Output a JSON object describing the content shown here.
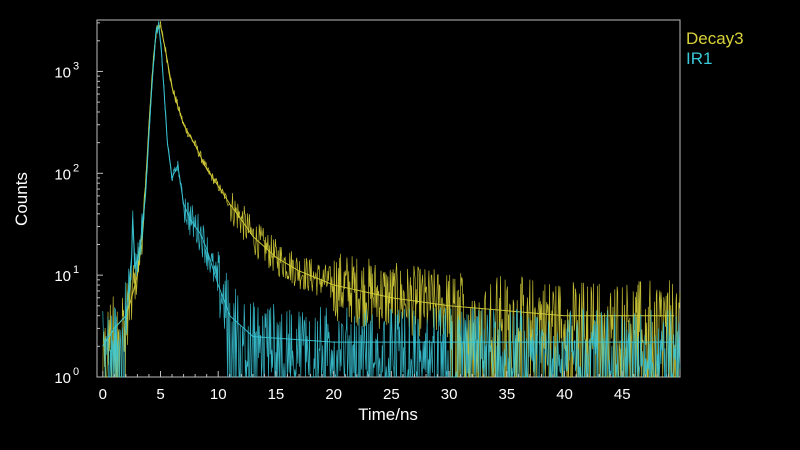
{
  "chart_data": {
    "type": "line",
    "title": "",
    "xlabel": "Time/ns",
    "ylabel": "Counts",
    "xlim": [
      -0.5,
      50
    ],
    "ylim": [
      1,
      3200
    ],
    "yscale": "log",
    "grid": false,
    "background": "#000000",
    "legend_placement": "right-top",
    "x_ticks": [
      "0",
      "5",
      "10",
      "15",
      "20",
      "25",
      "30",
      "35",
      "40",
      "45"
    ],
    "y_ticks": [
      {
        "value": 1,
        "mantissa": "10",
        "exp": "0"
      },
      {
        "value": 10,
        "mantissa": "10",
        "exp": "1"
      },
      {
        "value": 100,
        "mantissa": "10",
        "exp": "2"
      },
      {
        "value": 1000,
        "mantissa": "10",
        "exp": "3"
      }
    ],
    "series": [
      {
        "name": "Decay3",
        "color": "#d8d23a",
        "points": [
          [
            0,
            2
          ],
          [
            1,
            3
          ],
          [
            2,
            4
          ],
          [
            2.5,
            6
          ],
          [
            3,
            10
          ],
          [
            3.5,
            30
          ],
          [
            4,
            300
          ],
          [
            4.4,
            1400
          ],
          [
            4.7,
            2800
          ],
          [
            5.0,
            2800
          ],
          [
            5.4,
            1700
          ],
          [
            6.0,
            700
          ],
          [
            7.0,
            300
          ],
          [
            8.0,
            190
          ],
          [
            9.0,
            110
          ],
          [
            10.0,
            75
          ],
          [
            11.0,
            50
          ],
          [
            12.0,
            35
          ],
          [
            13.0,
            24
          ],
          [
            14.0,
            19
          ],
          [
            15.0,
            15
          ],
          [
            17.0,
            11
          ],
          [
            20.0,
            8
          ],
          [
            25.0,
            6
          ],
          [
            30.0,
            5
          ],
          [
            40.0,
            4
          ],
          [
            49.5,
            4
          ]
        ]
      },
      {
        "name": "IR1",
        "color": "#3ac8d8",
        "points": [
          [
            0,
            2
          ],
          [
            1,
            3
          ],
          [
            2,
            4
          ],
          [
            2.5,
            15
          ],
          [
            2.6,
            35
          ],
          [
            2.8,
            12
          ],
          [
            3.2,
            18
          ],
          [
            3.7,
            60
          ],
          [
            4.2,
            600
          ],
          [
            4.6,
            2400
          ],
          [
            4.85,
            2800
          ],
          [
            5.1,
            1500
          ],
          [
            5.6,
            200
          ],
          [
            6.0,
            90
          ],
          [
            6.5,
            120
          ],
          [
            7.0,
            50
          ],
          [
            7.6,
            35
          ],
          [
            8.5,
            25
          ],
          [
            9.0,
            18
          ],
          [
            10.0,
            8
          ],
          [
            11.0,
            4
          ],
          [
            13.0,
            2.5
          ],
          [
            20.0,
            2.2
          ],
          [
            30.0,
            2.2
          ],
          [
            49.5,
            2.2
          ]
        ]
      }
    ]
  }
}
